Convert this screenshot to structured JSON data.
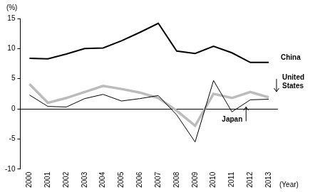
{
  "chart_data": {
    "type": "line",
    "y_label": "(%)",
    "x_label": "(Year)",
    "categories": [
      "2000",
      "2001",
      "2002",
      "2003",
      "2004",
      "2005",
      "2006",
      "2007",
      "2008",
      "2009",
      "2010",
      "2011",
      "2012",
      "2013"
    ],
    "series": [
      {
        "name": "China",
        "color": "#000000",
        "values": [
          8.4,
          8.3,
          9.1,
          10.0,
          10.1,
          11.3,
          12.7,
          14.2,
          9.6,
          9.2,
          10.4,
          9.3,
          7.7,
          7.7
        ]
      },
      {
        "name": "United States",
        "color": "#bbbbbb",
        "values": [
          4.1,
          1.0,
          1.8,
          2.8,
          3.8,
          3.3,
          2.7,
          1.8,
          -0.3,
          -2.8,
          2.5,
          1.8,
          2.8,
          1.9
        ]
      },
      {
        "name": "Japan",
        "color": "#000000",
        "values": [
          2.3,
          0.4,
          0.3,
          1.7,
          2.4,
          1.3,
          1.7,
          2.2,
          -1.0,
          -5.5,
          4.7,
          -0.5,
          1.5,
          1.6
        ]
      }
    ],
    "ylim": [
      -10,
      15
    ],
    "yticks": [
      -10,
      -5,
      0,
      5,
      10,
      15
    ],
    "grid": false
  }
}
